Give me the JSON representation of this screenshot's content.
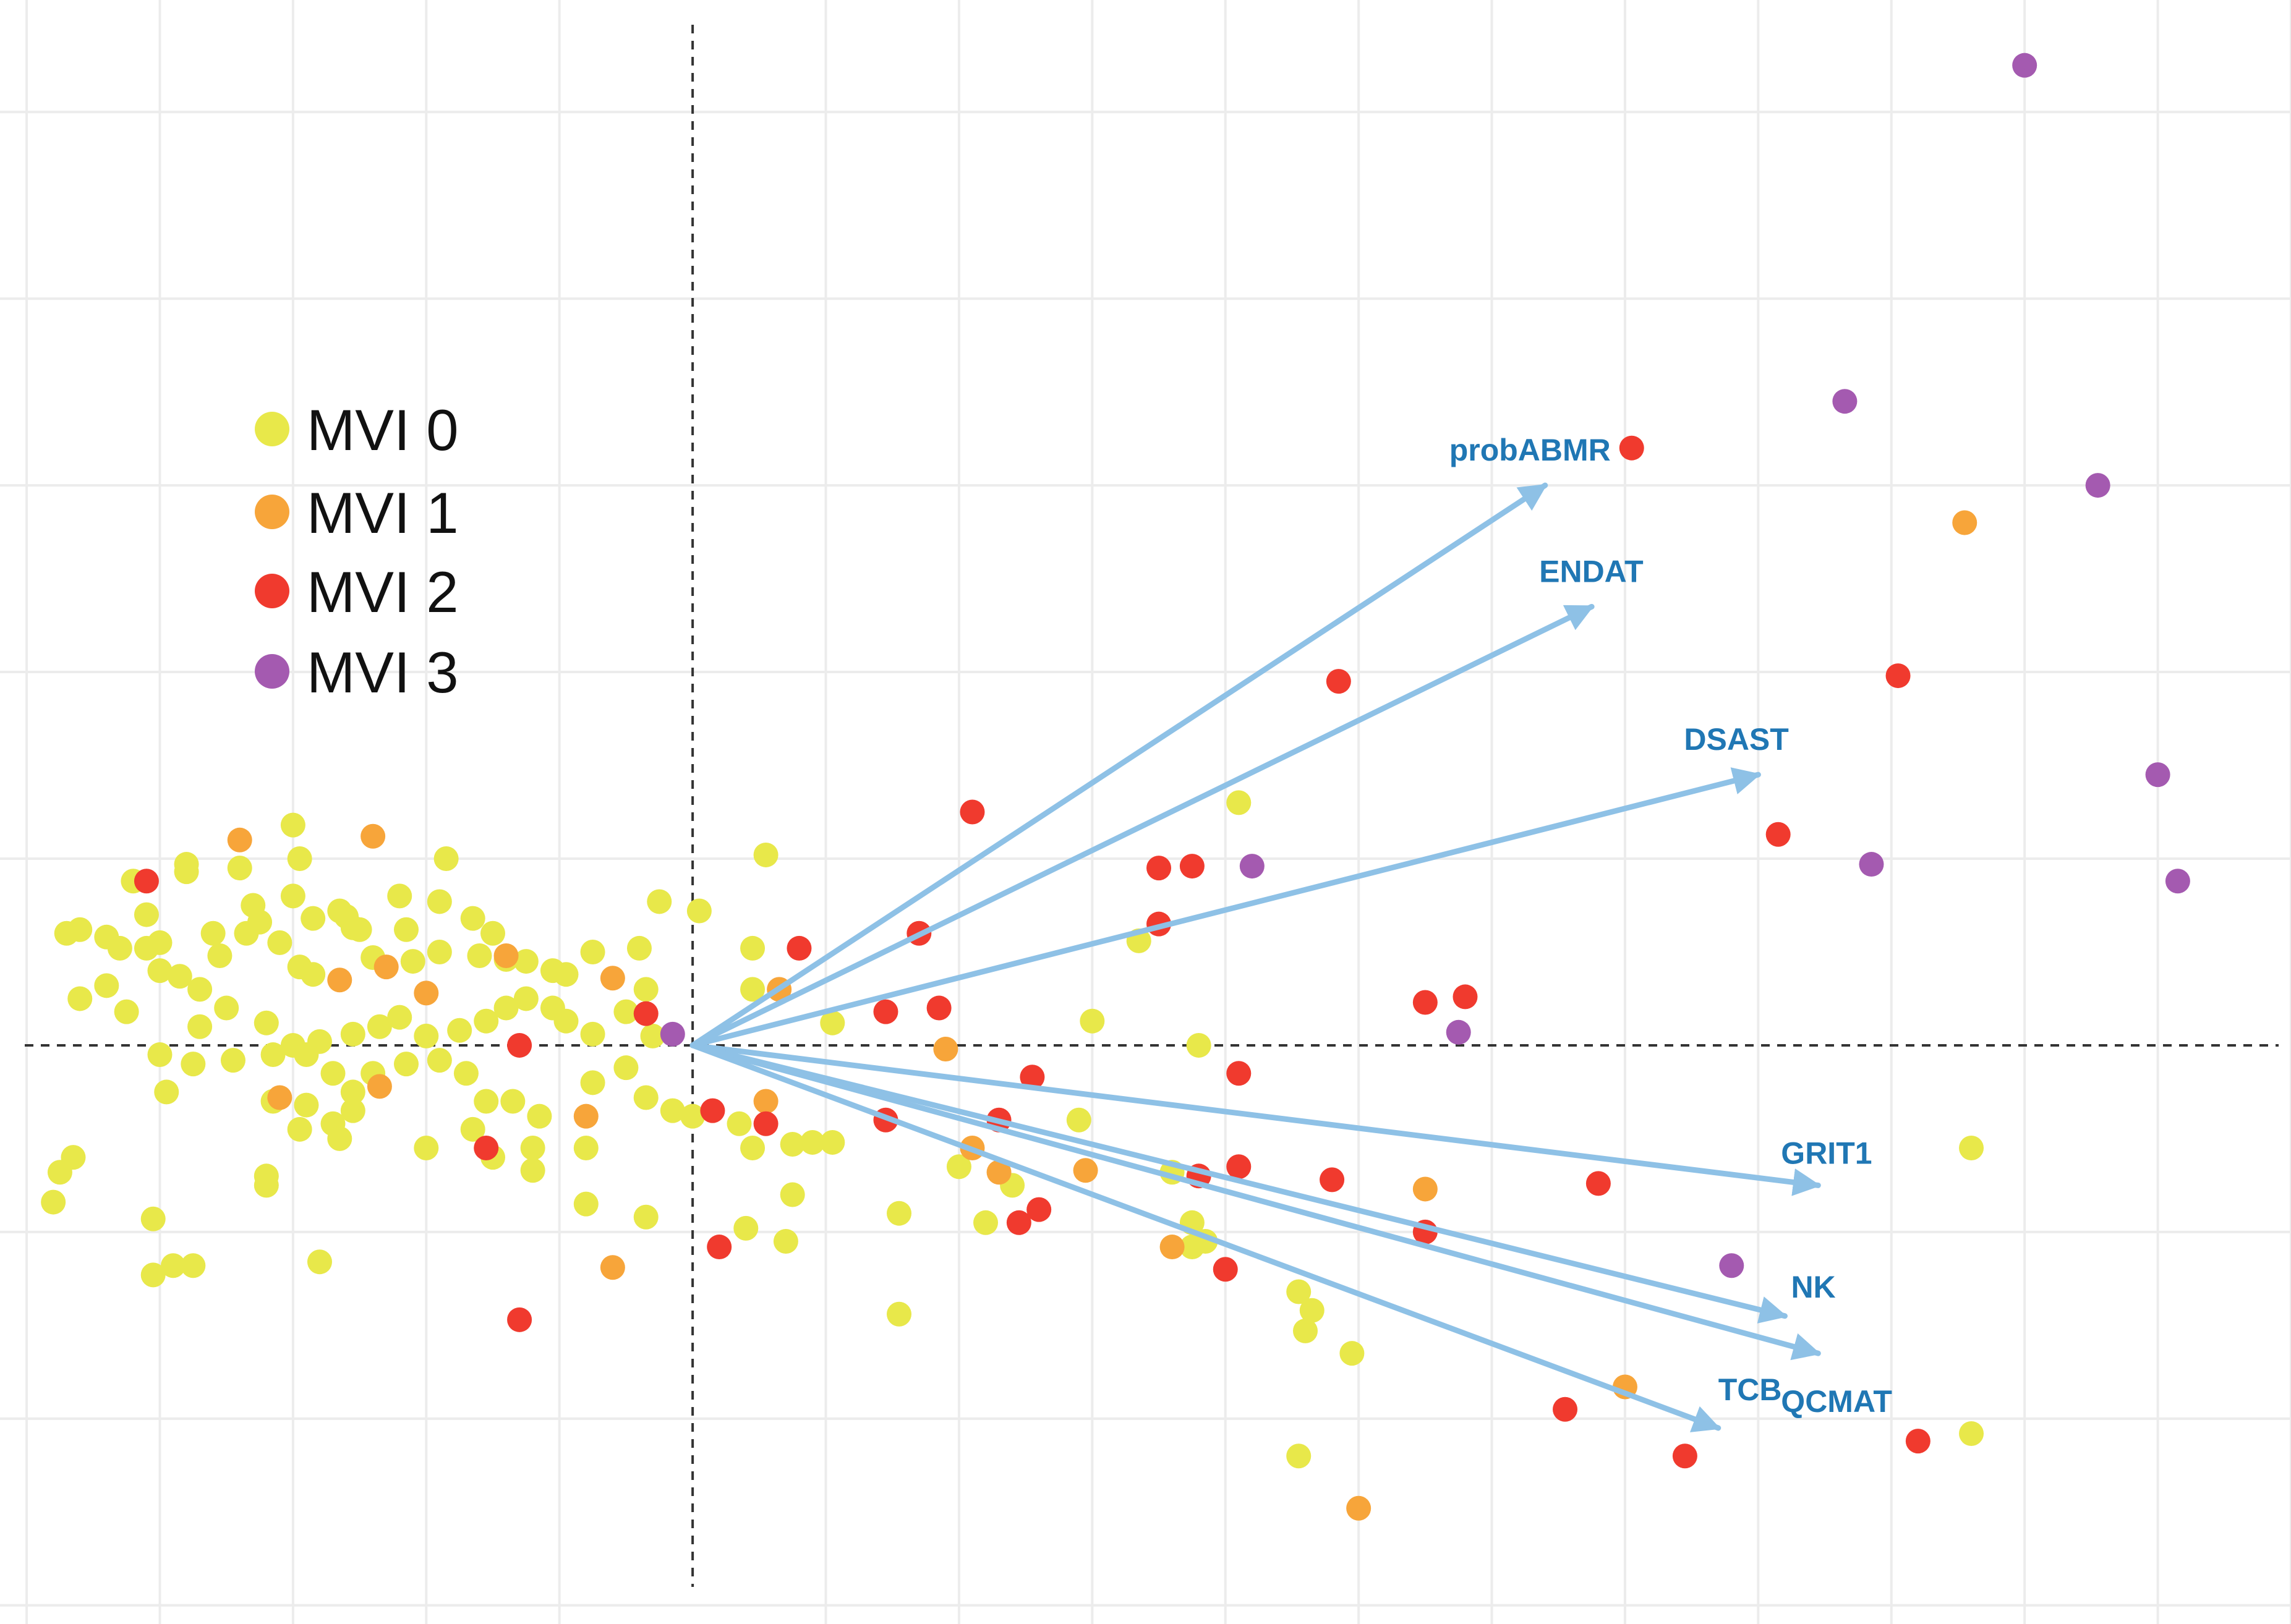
{
  "colors": {
    "MVI 0": "#e8e84a",
    "MVI 1": "#f7a53a",
    "MVI 2": "#f03a2e",
    "MVI 3": "#a45ab0",
    "vector": "#8ec1e6",
    "vector_label": "#2077b4"
  },
  "legend": [
    {
      "label": "MVI 0",
      "group": "MVI 0"
    },
    {
      "label": "MVI 1",
      "group": "MVI 1"
    },
    {
      "label": "MVI 2",
      "group": "MVI 2"
    },
    {
      "label": "MVI 3",
      "group": "MVI 3"
    }
  ],
  "chart_data": {
    "type": "scatter",
    "title": "",
    "xlabel": "",
    "ylabel": "",
    "xlim": [
      -5.2,
      12.0
    ],
    "ylim": [
      -3.1,
      5.6
    ],
    "grid": true,
    "legend_position": "left",
    "vectors": [
      {
        "name": "probABMR",
        "x": 6.4,
        "y": 3.0
      },
      {
        "name": "ENDAT",
        "x": 6.75,
        "y": 2.35
      },
      {
        "name": "DSAST",
        "x": 8.0,
        "y": 1.45
      },
      {
        "name": "GRIT1",
        "x": 8.45,
        "y": -0.75
      },
      {
        "name": "NK",
        "x": 8.2,
        "y": -1.45
      },
      {
        "name": "QCMAT",
        "x": 8.45,
        "y": -1.65
      },
      {
        "name": "TCB",
        "x": 7.7,
        "y": -2.05
      }
    ],
    "series": [
      {
        "name": "MVI 3",
        "points": [
          [
            10.0,
            5.25
          ],
          [
            8.65,
            3.45
          ],
          [
            10.55,
            3.0
          ],
          [
            11.0,
            1.45
          ],
          [
            8.85,
            0.97
          ],
          [
            11.15,
            0.88
          ],
          [
            4.2,
            0.96
          ],
          [
            5.75,
            0.07
          ],
          [
            7.8,
            -1.18
          ],
          [
            -0.15,
            0.06
          ]
        ]
      },
      {
        "name": "MVI 2",
        "points": [
          [
            7.05,
            3.2
          ],
          [
            4.85,
            1.95
          ],
          [
            9.05,
            1.98
          ],
          [
            8.15,
            1.13
          ],
          [
            2.1,
            1.25
          ],
          [
            3.5,
            0.95
          ],
          [
            3.75,
            0.96
          ],
          [
            3.5,
            0.65
          ],
          [
            1.7,
            0.6
          ],
          [
            0.8,
            0.52
          ],
          [
            1.85,
            0.2
          ],
          [
            1.45,
            0.18
          ],
          [
            5.5,
            0.23
          ],
          [
            5.8,
            0.26
          ],
          [
            -0.35,
            0.17
          ],
          [
            2.55,
            -0.17
          ],
          [
            4.1,
            -0.15
          ],
          [
            1.45,
            -0.4
          ],
          [
            2.3,
            -0.4
          ],
          [
            3.8,
            -0.7
          ],
          [
            4.1,
            -0.65
          ],
          [
            4.8,
            -0.72
          ],
          [
            6.8,
            -0.74
          ],
          [
            2.6,
            -0.88
          ],
          [
            2.45,
            -0.95
          ],
          [
            5.5,
            -1.0
          ],
          [
            4.0,
            -1.2
          ],
          [
            0.2,
            -1.08
          ],
          [
            0.55,
            -0.42
          ],
          [
            0.15,
            -0.35
          ],
          [
            -1.55,
            -0.55
          ],
          [
            -1.3,
            0.0
          ],
          [
            -4.1,
            0.88
          ],
          [
            -1.3,
            -1.47
          ],
          [
            6.55,
            -1.95
          ],
          [
            7.45,
            -2.2
          ],
          [
            9.2,
            -2.12
          ]
        ]
      },
      {
        "name": "MVI 1",
        "points": [
          [
            -3.4,
            1.1
          ],
          [
            -2.4,
            1.12
          ],
          [
            -3.1,
            -0.28
          ],
          [
            -2.65,
            0.35
          ],
          [
            -2.3,
            0.42
          ],
          [
            -2.0,
            0.28
          ],
          [
            -1.4,
            0.48
          ],
          [
            -2.35,
            -0.22
          ],
          [
            -0.8,
            -0.38
          ],
          [
            -0.6,
            0.36
          ],
          [
            0.55,
            -0.3
          ],
          [
            0.65,
            0.3
          ],
          [
            1.9,
            -0.02
          ],
          [
            2.1,
            -0.55
          ],
          [
            2.3,
            -0.68
          ],
          [
            2.95,
            -0.67
          ],
          [
            3.6,
            -1.08
          ],
          [
            5.5,
            -0.77
          ],
          [
            7.0,
            -1.83
          ],
          [
            5.0,
            -2.48
          ],
          [
            -0.6,
            -1.19
          ],
          [
            9.55,
            2.8
          ]
        ]
      },
      {
        "name": "MVI 0",
        "points": [
          [
            -4.7,
            0.6
          ],
          [
            -4.6,
            0.62
          ],
          [
            -4.4,
            0.58
          ],
          [
            -4.3,
            0.52
          ],
          [
            -4.1,
            0.52
          ],
          [
            -3.85,
            0.37
          ],
          [
            -3.7,
            0.3
          ],
          [
            -3.55,
            0.48
          ],
          [
            -3.35,
            0.6
          ],
          [
            -3.1,
            0.55
          ],
          [
            -2.95,
            0.42
          ],
          [
            -2.85,
            0.38
          ],
          [
            -2.55,
            0.63
          ],
          [
            -2.4,
            0.47
          ],
          [
            -2.1,
            0.45
          ],
          [
            -1.9,
            0.5
          ],
          [
            -1.6,
            0.48
          ],
          [
            -1.4,
            0.46
          ],
          [
            -1.05,
            0.4
          ],
          [
            -0.95,
            0.38
          ],
          [
            -0.75,
            0.5
          ],
          [
            -4.2,
            0.88
          ],
          [
            -3.8,
            0.93
          ],
          [
            -3.3,
            0.75
          ],
          [
            -3.0,
            0.8
          ],
          [
            -2.6,
            0.69
          ],
          [
            -2.2,
            0.8
          ],
          [
            -1.85,
            1.0
          ],
          [
            -3.0,
            1.18
          ],
          [
            -3.8,
            0.97
          ],
          [
            -4.1,
            0.7
          ],
          [
            -4.0,
            0.55
          ],
          [
            -3.6,
            0.6
          ],
          [
            -3.25,
            0.66
          ],
          [
            -2.85,
            0.68
          ],
          [
            -2.65,
            0.72
          ],
          [
            -2.5,
            0.62
          ],
          [
            -2.15,
            0.62
          ],
          [
            -4.6,
            0.25
          ],
          [
            -4.4,
            0.32
          ],
          [
            -4.25,
            0.18
          ],
          [
            -4.0,
            0.4
          ],
          [
            -3.7,
            0.1
          ],
          [
            -3.5,
            0.2
          ],
          [
            -3.2,
            0.12
          ],
          [
            -3.15,
            -0.05
          ],
          [
            -3.0,
            0.0
          ],
          [
            -2.8,
            0.02
          ],
          [
            -2.55,
            0.06
          ],
          [
            -2.35,
            0.1
          ],
          [
            -2.2,
            0.15
          ],
          [
            -2.0,
            0.05
          ],
          [
            -1.75,
            0.08
          ],
          [
            -1.55,
            0.13
          ],
          [
            -1.4,
            0.2
          ],
          [
            -1.25,
            0.25
          ],
          [
            -0.95,
            0.13
          ],
          [
            -0.75,
            0.06
          ],
          [
            -0.5,
            0.18
          ],
          [
            -0.3,
            0.05
          ],
          [
            -4.0,
            -0.05
          ],
          [
            -3.75,
            -0.1
          ],
          [
            -3.45,
            -0.08
          ],
          [
            -2.9,
            -0.05
          ],
          [
            -2.7,
            -0.15
          ],
          [
            -2.55,
            -0.25
          ],
          [
            -2.4,
            -0.15
          ],
          [
            -2.15,
            -0.1
          ],
          [
            -1.9,
            -0.08
          ],
          [
            -1.7,
            -0.15
          ],
          [
            -1.55,
            -0.3
          ],
          [
            -1.35,
            -0.3
          ],
          [
            -1.15,
            -0.38
          ],
          [
            -0.75,
            -0.2
          ],
          [
            -0.5,
            -0.12
          ],
          [
            -0.35,
            -0.28
          ],
          [
            -0.15,
            -0.35
          ],
          [
            0.0,
            -0.38
          ],
          [
            0.35,
            -0.42
          ],
          [
            0.45,
            -0.55
          ],
          [
            0.75,
            -0.53
          ],
          [
            0.9,
            -0.52
          ],
          [
            1.05,
            -0.52
          ],
          [
            -3.95,
            -0.25
          ],
          [
            -3.15,
            -0.3
          ],
          [
            -2.9,
            -0.32
          ],
          [
            -2.7,
            -0.42
          ],
          [
            -2.55,
            -0.35
          ],
          [
            -2.95,
            -0.45
          ],
          [
            -2.65,
            -0.5
          ],
          [
            -1.65,
            -0.45
          ],
          [
            -1.5,
            -0.6
          ],
          [
            -1.2,
            -0.55
          ],
          [
            -0.8,
            -0.55
          ],
          [
            -0.8,
            -0.85
          ],
          [
            -1.2,
            -0.67
          ],
          [
            -2.0,
            -0.55
          ],
          [
            -3.2,
            -0.7
          ],
          [
            -3.2,
            -0.75
          ],
          [
            -4.65,
            -0.6
          ],
          [
            -4.75,
            -0.68
          ],
          [
            -4.8,
            -0.84
          ],
          [
            -4.05,
            -0.93
          ],
          [
            -4.05,
            -1.23
          ],
          [
            -3.9,
            -1.18
          ],
          [
            -3.75,
            -1.18
          ],
          [
            -2.8,
            -1.16
          ],
          [
            -0.35,
            -0.92
          ],
          [
            0.4,
            -0.98
          ],
          [
            0.7,
            -1.05
          ],
          [
            0.75,
            -0.8
          ],
          [
            1.55,
            -0.9
          ],
          [
            2.2,
            -0.95
          ],
          [
            2.4,
            -0.75
          ],
          [
            2.0,
            -0.65
          ],
          [
            3.6,
            -0.68
          ],
          [
            3.75,
            -0.95
          ],
          [
            3.85,
            -1.05
          ],
          [
            3.75,
            -1.08
          ],
          [
            4.55,
            -1.32
          ],
          [
            4.65,
            -1.42
          ],
          [
            4.6,
            -1.53
          ],
          [
            4.95,
            -1.65
          ],
          [
            4.55,
            -2.2
          ],
          [
            1.55,
            -1.44
          ],
          [
            2.9,
            -0.4
          ],
          [
            3.0,
            0.13
          ],
          [
            3.8,
            0.0
          ],
          [
            4.1,
            1.3
          ],
          [
            3.35,
            0.56
          ],
          [
            1.05,
            0.12
          ],
          [
            0.45,
            0.52
          ],
          [
            0.45,
            0.3
          ],
          [
            0.55,
            1.02
          ],
          [
            0.05,
            0.72
          ],
          [
            -0.25,
            0.77
          ],
          [
            -0.4,
            0.52
          ],
          [
            -0.35,
            0.3
          ],
          [
            -2.95,
            1.0
          ],
          [
            -3.4,
            0.95
          ],
          [
            -1.9,
            0.77
          ],
          [
            -1.65,
            0.68
          ],
          [
            -1.5,
            0.6
          ],
          [
            -1.25,
            0.45
          ],
          [
            -1.05,
            0.2
          ],
          [
            9.6,
            -0.55
          ],
          [
            9.6,
            -2.08
          ]
        ]
      }
    ]
  }
}
